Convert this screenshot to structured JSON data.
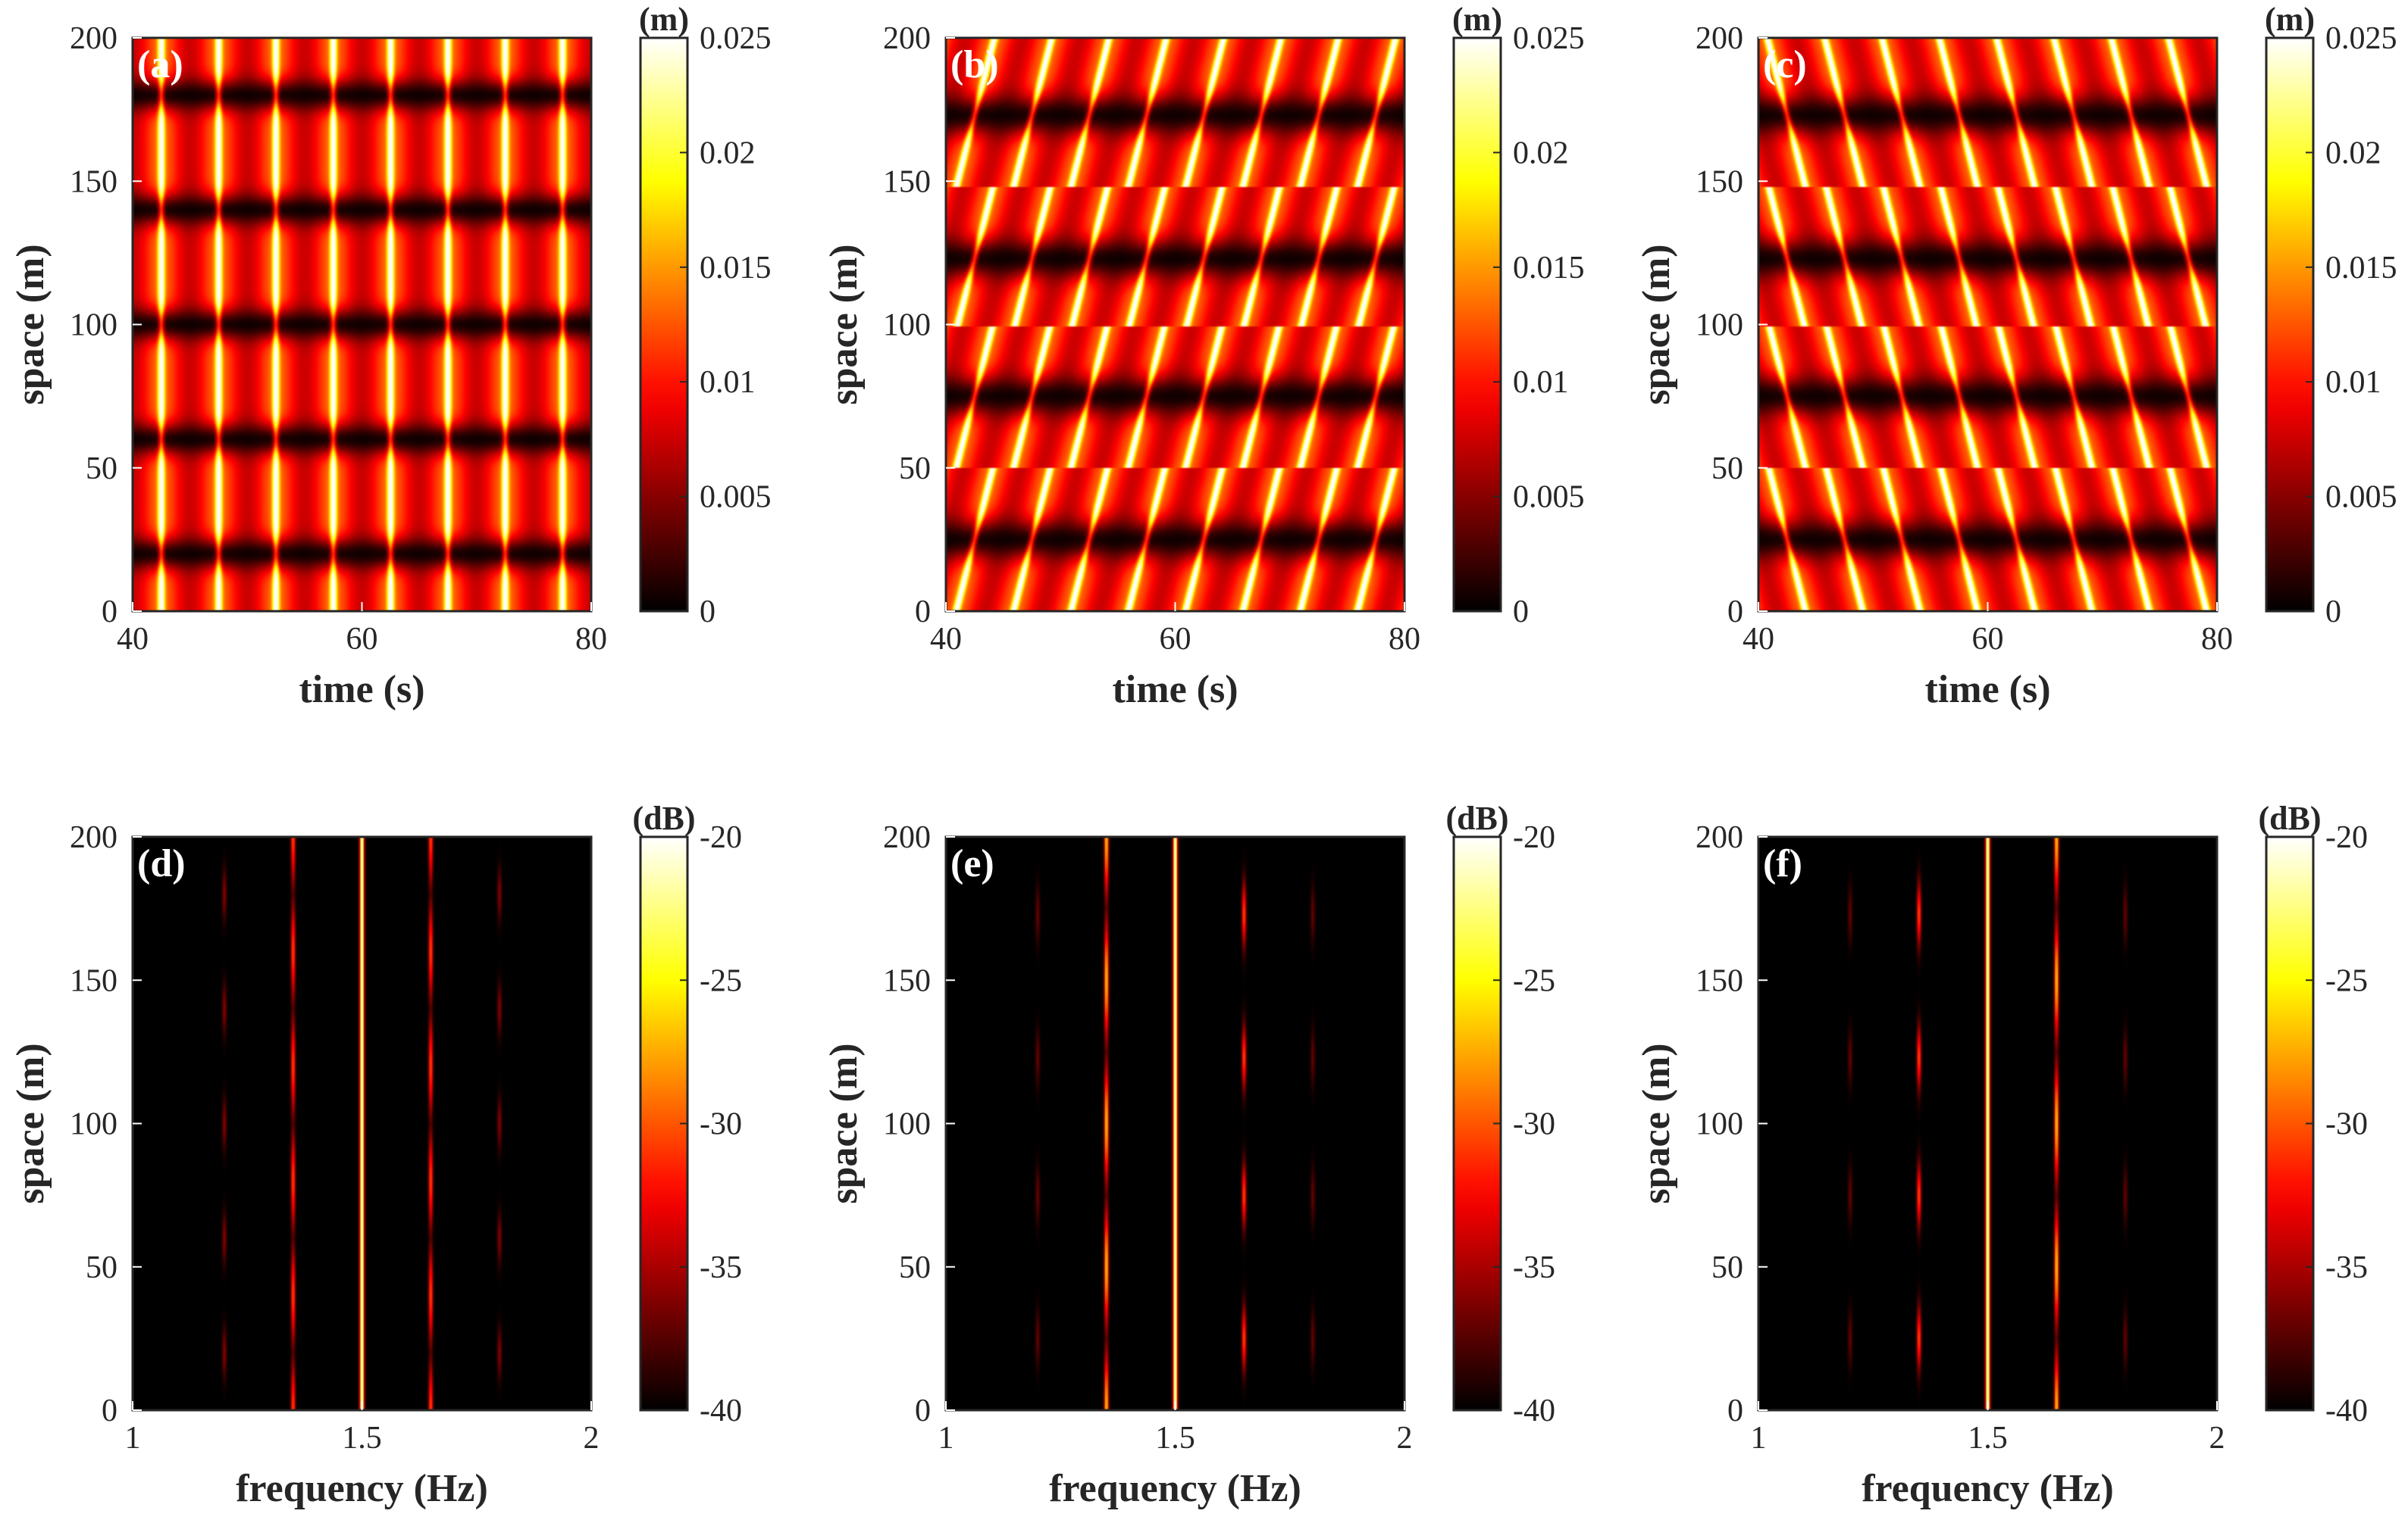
{
  "figure_title": "",
  "colormap": {
    "name": "hot",
    "stops": [
      "#000000",
      "#3a0000",
      "#8a0000",
      "#d40000",
      "#ff3300",
      "#ff8c00",
      "#ffd700",
      "#ffff40",
      "#ffffff"
    ]
  },
  "chart_data": [
    {
      "panel": "(a)",
      "type": "heatmap",
      "xlabel": "time (s)",
      "ylabel": "space (m)",
      "xlim": [
        40,
        80
      ],
      "ylim": [
        0,
        200
      ],
      "xticks": [
        "40",
        "60",
        "80"
      ],
      "xtick_values": [
        40,
        60,
        80
      ],
      "yticks": [
        "0",
        "50",
        "100",
        "150",
        "200"
      ],
      "ytick_values": [
        0,
        50,
        100,
        150,
        200
      ],
      "colorbar": {
        "unit": "(m)",
        "range": [
          0,
          0.025
        ],
        "ticks": [
          "0",
          "0.005",
          "0.01",
          "0.015",
          "0.02",
          "0.025"
        ],
        "tick_values": [
          0,
          0.005,
          0.01,
          0.015,
          0.02,
          0.025
        ]
      },
      "pattern": {
        "kind": "symmetric-modulation",
        "temporal_period_s": 5,
        "dark_band_y_m": [
          20,
          60,
          100,
          140,
          180
        ],
        "bright_ridge_time_offset_s": 2.5,
        "skew_s": 0
      }
    },
    {
      "panel": "(b)",
      "type": "heatmap",
      "xlabel": "time (s)",
      "ylabel": "space (m)",
      "xlim": [
        40,
        80
      ],
      "ylim": [
        0,
        200
      ],
      "xticks": [
        "40",
        "60",
        "80"
      ],
      "xtick_values": [
        40,
        60,
        80
      ],
      "yticks": [
        "0",
        "50",
        "100",
        "150",
        "200"
      ],
      "ytick_values": [
        0,
        50,
        100,
        150,
        200
      ],
      "colorbar": {
        "unit": "(m)",
        "range": [
          0,
          0.025
        ],
        "ticks": [
          "0",
          "0.005",
          "0.01",
          "0.015",
          "0.02",
          "0.025"
        ],
        "tick_values": [
          0,
          0.005,
          0.01,
          0.015,
          0.02,
          0.025
        ]
      },
      "pattern": {
        "kind": "skewed-modulation",
        "temporal_period_s": 5,
        "dark_band_y_m": [
          25,
          75,
          123,
          173
        ],
        "bright_ridge_time_offset_s": 2.5,
        "skew_s": 1.6
      }
    },
    {
      "panel": "(c)",
      "type": "heatmap",
      "xlabel": "time (s)",
      "ylabel": "space (m)",
      "xlim": [
        40,
        80
      ],
      "ylim": [
        0,
        200
      ],
      "xticks": [
        "40",
        "60",
        "80"
      ],
      "xtick_values": [
        40,
        60,
        80
      ],
      "yticks": [
        "0",
        "50",
        "100",
        "150",
        "200"
      ],
      "ytick_values": [
        0,
        50,
        100,
        150,
        200
      ],
      "colorbar": {
        "unit": "(m)",
        "range": [
          0,
          0.025
        ],
        "ticks": [
          "0",
          "0.005",
          "0.01",
          "0.015",
          "0.02",
          "0.025"
        ],
        "tick_values": [
          0,
          0.005,
          0.01,
          0.015,
          0.02,
          0.025
        ]
      },
      "pattern": {
        "kind": "skewed-modulation",
        "temporal_period_s": 5,
        "dark_band_y_m": [
          25,
          75,
          123,
          173
        ],
        "bright_ridge_time_offset_s": 2.5,
        "skew_s": -1.6
      }
    },
    {
      "panel": "(d)",
      "type": "heatmap",
      "xlabel": "frequency (Hz)",
      "ylabel": "space (m)",
      "xlim": [
        1,
        2
      ],
      "ylim": [
        0,
        200
      ],
      "xticks": [
        "1",
        "1.5",
        "2"
      ],
      "xtick_values": [
        1,
        1.5,
        2
      ],
      "yticks": [
        "0",
        "50",
        "100",
        "150",
        "200"
      ],
      "ytick_values": [
        0,
        50,
        100,
        150,
        200
      ],
      "colorbar": {
        "unit": "(dB)",
        "range": [
          -40,
          -20
        ],
        "ticks": [
          "-40",
          "-35",
          "-30",
          "-25",
          "-20"
        ],
        "tick_values": [
          -40,
          -35,
          -30,
          -25,
          -20
        ]
      },
      "spectral_lines": [
        {
          "frequency_hz": 1.2,
          "level_db": -36,
          "modulated": true,
          "lobe_centers_m": [
            20,
            60,
            100,
            140,
            180
          ],
          "lobe_halfwidth_m": 9
        },
        {
          "frequency_hz": 1.35,
          "level_db": -30,
          "modulated": true,
          "lobe_centers_m": [
            40,
            80,
            120,
            160,
            200,
            0
          ],
          "lobe_halfwidth_m": 17
        },
        {
          "frequency_hz": 1.5,
          "level_db": -20,
          "modulated": false
        },
        {
          "frequency_hz": 1.65,
          "level_db": -30,
          "modulated": true,
          "lobe_centers_m": [
            40,
            80,
            120,
            160,
            200,
            0
          ],
          "lobe_halfwidth_m": 17
        },
        {
          "frequency_hz": 1.8,
          "level_db": -36,
          "modulated": true,
          "lobe_centers_m": [
            20,
            60,
            100,
            140,
            180
          ],
          "lobe_halfwidth_m": 9
        }
      ]
    },
    {
      "panel": "(e)",
      "type": "heatmap",
      "xlabel": "frequency (Hz)",
      "ylabel": "space (m)",
      "xlim": [
        1,
        2
      ],
      "ylim": [
        0,
        200
      ],
      "xticks": [
        "1",
        "1.5",
        "2"
      ],
      "xtick_values": [
        1,
        1.5,
        2
      ],
      "yticks": [
        "0",
        "50",
        "100",
        "150",
        "200"
      ],
      "ytick_values": [
        0,
        50,
        100,
        150,
        200
      ],
      "colorbar": {
        "unit": "(dB)",
        "range": [
          -40,
          -20
        ],
        "ticks": [
          "-40",
          "-35",
          "-30",
          "-25",
          "-20"
        ],
        "tick_values": [
          -40,
          -35,
          -30,
          -25,
          -20
        ]
      },
      "spectral_lines": [
        {
          "frequency_hz": 1.2,
          "level_db": -37,
          "modulated": true,
          "lobe_centers_m": [
            25,
            75,
            123,
            173
          ],
          "lobe_halfwidth_m": 10
        },
        {
          "frequency_hz": 1.35,
          "level_db": -26,
          "modulated": true,
          "lobe_centers_m": [
            0,
            50,
            100,
            150,
            200
          ],
          "lobe_halfwidth_m": 20
        },
        {
          "frequency_hz": 1.5,
          "level_db": -20,
          "modulated": false
        },
        {
          "frequency_hz": 1.65,
          "level_db": -30,
          "modulated": true,
          "lobe_centers_m": [
            25,
            75,
            123,
            173
          ],
          "lobe_halfwidth_m": 11
        },
        {
          "frequency_hz": 1.8,
          "level_db": -37,
          "modulated": true,
          "lobe_centers_m": [
            25,
            75,
            123,
            173
          ],
          "lobe_halfwidth_m": 10
        }
      ]
    },
    {
      "panel": "(f)",
      "type": "heatmap",
      "xlabel": "frequency (Hz)",
      "ylabel": "space (m)",
      "xlim": [
        1,
        2
      ],
      "ylim": [
        0,
        200
      ],
      "xticks": [
        "1",
        "1.5",
        "2"
      ],
      "xtick_values": [
        1,
        1.5,
        2
      ],
      "yticks": [
        "0",
        "50",
        "100",
        "150",
        "200"
      ],
      "ytick_values": [
        0,
        50,
        100,
        150,
        200
      ],
      "colorbar": {
        "unit": "(dB)",
        "range": [
          -40,
          -20
        ],
        "ticks": [
          "-40",
          "-35",
          "-30",
          "-25",
          "-20"
        ],
        "tick_values": [
          -40,
          -35,
          -30,
          -25,
          -20
        ]
      },
      "spectral_lines": [
        {
          "frequency_hz": 1.2,
          "level_db": -37,
          "modulated": true,
          "lobe_centers_m": [
            25,
            75,
            123,
            173
          ],
          "lobe_halfwidth_m": 10
        },
        {
          "frequency_hz": 1.35,
          "level_db": -30,
          "modulated": true,
          "lobe_centers_m": [
            25,
            75,
            123,
            173
          ],
          "lobe_halfwidth_m": 11
        },
        {
          "frequency_hz": 1.5,
          "level_db": -20,
          "modulated": false
        },
        {
          "frequency_hz": 1.65,
          "level_db": -26,
          "modulated": true,
          "lobe_centers_m": [
            0,
            50,
            100,
            150,
            200
          ],
          "lobe_halfwidth_m": 20
        },
        {
          "frequency_hz": 1.8,
          "level_db": -37,
          "modulated": true,
          "lobe_centers_m": [
            25,
            75,
            123,
            173
          ],
          "lobe_halfwidth_m": 10
        }
      ]
    }
  ]
}
